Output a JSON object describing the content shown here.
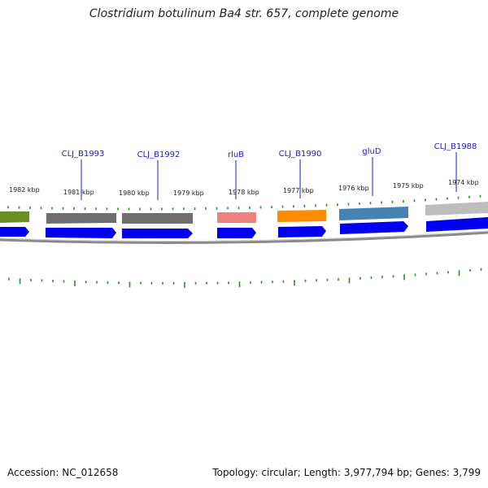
{
  "title": "Clostridium botulinum Ba4 str. 657, complete genome",
  "footer": {
    "accession": "Accession: NC_012658",
    "topology": "Topology: circular; Length: 3,977,794 bp; Genes: 3,799"
  },
  "colors": {
    "gene_label": "#1a1ad6",
    "tick": "#2e8b2e",
    "cds_arrow": "#0000ee",
    "backbone": "#8a8a8a"
  },
  "kbp_labels": [
    {
      "text": "1982 kbp"
    },
    {
      "text": "1981 kbp"
    },
    {
      "text": "1980 kbp"
    },
    {
      "text": "1979 kbp"
    },
    {
      "text": "1978 kbp"
    },
    {
      "text": "1977 kbp"
    },
    {
      "text": "1976 kbp"
    },
    {
      "text": "1975 kbp"
    },
    {
      "text": "1974 kbp"
    }
  ],
  "gene_labels": [
    {
      "text": "CLJ_B1993"
    },
    {
      "text": "CLJ_B1992"
    },
    {
      "text": "rluB"
    },
    {
      "text": "CLJ_B1990"
    },
    {
      "text": "gluD"
    },
    {
      "text": "CLJ_B1988"
    }
  ],
  "feature_colors": [
    "#6b8e23",
    "#6e6e6e",
    "#6e6e6e",
    "#f08080",
    "#ff8c00",
    "#4682b4",
    "#bdbdbd"
  ]
}
